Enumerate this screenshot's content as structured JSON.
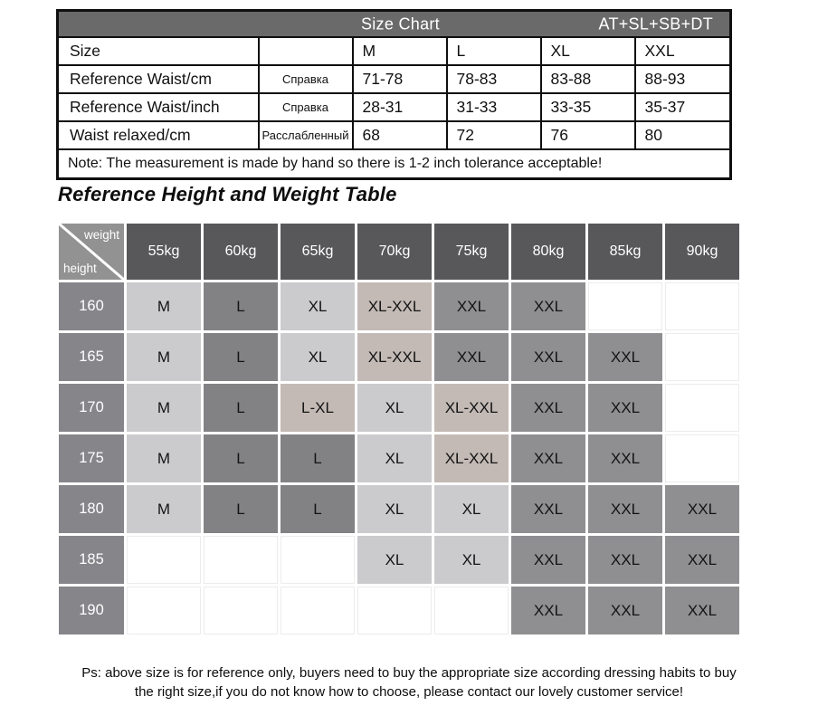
{
  "size_chart": {
    "title": "Size Chart",
    "collection": "AT+SL+SB+DT",
    "rows": [
      {
        "label": "Size",
        "note": "",
        "values": [
          "M",
          "L",
          "XL",
          "XXL"
        ]
      },
      {
        "label": "Reference Waist/cm",
        "note": "Справка",
        "values": [
          "71-78",
          "78-83",
          "83-88",
          "88-93"
        ]
      },
      {
        "label": "Reference Waist/inch",
        "note": "Справка",
        "values": [
          "28-31",
          "31-33",
          "33-35",
          "35-37"
        ]
      },
      {
        "label": "Waist relaxed/cm",
        "note": "Расслабленный",
        "values": [
          "68",
          "72",
          "76",
          "80"
        ]
      }
    ],
    "note": "Note: The measurement is made by hand so there is 1-2 inch tolerance acceptable!"
  },
  "heading": {
    "text": "Reference Height and Weight Table"
  },
  "grid": {
    "corner": {
      "weight_label": "weight",
      "height_label": "height"
    },
    "weights": [
      "55kg",
      "60kg",
      "65kg",
      "70kg",
      "75kg",
      "80kg",
      "85kg",
      "90kg"
    ],
    "palette": {
      "light": "#cbcbcd",
      "dark": "#828285",
      "taupe": "#c3bab6",
      "mid": "#8f8f92",
      "header": "#58585a",
      "height_label": "#85858a",
      "corner": "#929292",
      "band": "#6a6a6a",
      "empty": ""
    },
    "rows": [
      {
        "height": "160",
        "cells": [
          {
            "t": "M",
            "c": "light"
          },
          {
            "t": "L",
            "c": "dark"
          },
          {
            "t": "XL",
            "c": "light"
          },
          {
            "t": "XL-XXL",
            "c": "taupe"
          },
          {
            "t": "XXL",
            "c": "mid"
          },
          {
            "t": "XXL",
            "c": "mid"
          },
          {
            "t": "",
            "c": "empty"
          },
          {
            "t": "",
            "c": "empty"
          }
        ]
      },
      {
        "height": "165",
        "cells": [
          {
            "t": "M",
            "c": "light"
          },
          {
            "t": "L",
            "c": "dark"
          },
          {
            "t": "XL",
            "c": "light"
          },
          {
            "t": "XL-XXL",
            "c": "taupe"
          },
          {
            "t": "XXL",
            "c": "mid"
          },
          {
            "t": "XXL",
            "c": "mid"
          },
          {
            "t": "XXL",
            "c": "mid"
          },
          {
            "t": "",
            "c": "empty"
          }
        ]
      },
      {
        "height": "170",
        "cells": [
          {
            "t": "M",
            "c": "light"
          },
          {
            "t": "L",
            "c": "dark"
          },
          {
            "t": "L-XL",
            "c": "taupe"
          },
          {
            "t": "XL",
            "c": "light"
          },
          {
            "t": "XL-XXL",
            "c": "taupe"
          },
          {
            "t": "XXL",
            "c": "mid"
          },
          {
            "t": "XXL",
            "c": "mid"
          },
          {
            "t": "",
            "c": "empty"
          }
        ]
      },
      {
        "height": "175",
        "cells": [
          {
            "t": "M",
            "c": "light"
          },
          {
            "t": "L",
            "c": "dark"
          },
          {
            "t": "L",
            "c": "dark"
          },
          {
            "t": "XL",
            "c": "light"
          },
          {
            "t": "XL-XXL",
            "c": "taupe"
          },
          {
            "t": "XXL",
            "c": "mid"
          },
          {
            "t": "XXL",
            "c": "mid"
          },
          {
            "t": "",
            "c": "empty"
          }
        ]
      },
      {
        "height": "180",
        "cells": [
          {
            "t": "M",
            "c": "light"
          },
          {
            "t": "L",
            "c": "dark"
          },
          {
            "t": "L",
            "c": "dark"
          },
          {
            "t": "XL",
            "c": "light"
          },
          {
            "t": "XL",
            "c": "light"
          },
          {
            "t": "XXL",
            "c": "mid"
          },
          {
            "t": "XXL",
            "c": "mid"
          },
          {
            "t": "XXL",
            "c": "mid"
          }
        ]
      },
      {
        "height": "185",
        "cells": [
          {
            "t": "",
            "c": "empty"
          },
          {
            "t": "",
            "c": "empty"
          },
          {
            "t": "",
            "c": "empty"
          },
          {
            "t": "XL",
            "c": "light"
          },
          {
            "t": "XL",
            "c": "light"
          },
          {
            "t": "XXL",
            "c": "mid"
          },
          {
            "t": "XXL",
            "c": "mid"
          },
          {
            "t": "XXL",
            "c": "mid"
          }
        ]
      },
      {
        "height": "190",
        "cells": [
          {
            "t": "",
            "c": "empty"
          },
          {
            "t": "",
            "c": "empty"
          },
          {
            "t": "",
            "c": "empty"
          },
          {
            "t": "",
            "c": "empty"
          },
          {
            "t": "",
            "c": "empty"
          },
          {
            "t": "XXL",
            "c": "mid"
          },
          {
            "t": "XXL",
            "c": "mid"
          },
          {
            "t": "XXL",
            "c": "mid"
          }
        ]
      }
    ]
  },
  "footer": {
    "line1": "Ps: above size is for reference only, buyers need to buy the appropriate size according dressing habits to buy",
    "line2": "the right size,if you do not know how to choose, please contact our lovely customer service!"
  }
}
